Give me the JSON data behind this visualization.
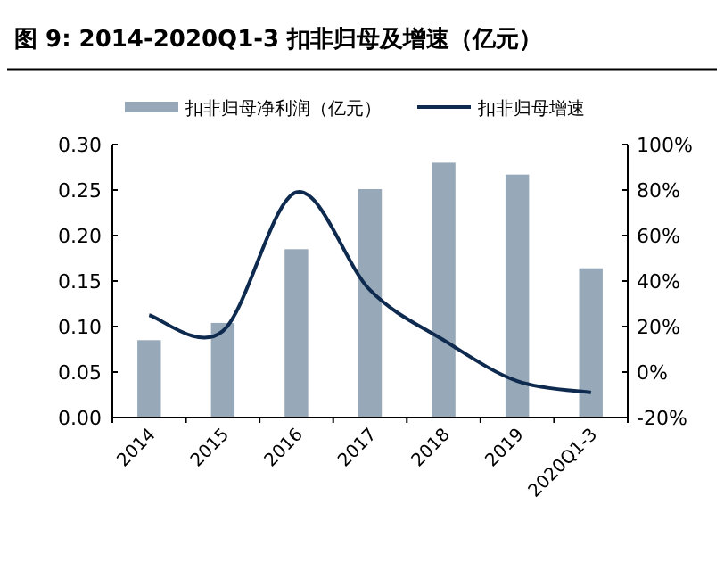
{
  "chart_data": {
    "type": "bar",
    "title": "图 9:   2014-2020Q1-3 扣非归母及增速（亿元）",
    "categories": [
      "2014",
      "2015",
      "2016",
      "2017",
      "2018",
      "2019",
      "2020Q1-3"
    ],
    "series": [
      {
        "name": "扣非归母净利润（亿元）",
        "color": "#97a9b8",
        "values": [
          0.085,
          0.104,
          0.185,
          0.251,
          0.28,
          0.267,
          0.164
        ]
      },
      {
        "name": "扣非归母增速",
        "type": "line",
        "axis": "y2",
        "color": "#0e2a4f",
        "values": [
          25,
          18,
          79,
          36,
          14,
          -4,
          -9
        ]
      }
    ],
    "ylim": [
      0,
      0.3
    ],
    "yticks": [
      {
        "value": 0,
        "label": "0.00"
      },
      {
        "value": 0.05,
        "label": "0.05"
      },
      {
        "value": 0.1,
        "label": "0.10"
      },
      {
        "value": 0.15,
        "label": "0.15"
      },
      {
        "value": 0.2,
        "label": "0.20"
      },
      {
        "value": 0.25,
        "label": "0.25"
      },
      {
        "value": 0.3,
        "label": "0.30"
      }
    ],
    "y2lim": [
      -20,
      100
    ],
    "y2ticks": [
      {
        "value": -20,
        "label": "-20%"
      },
      {
        "value": 0,
        "label": "0%"
      },
      {
        "value": 20,
        "label": "20%"
      },
      {
        "value": 40,
        "label": "40%"
      },
      {
        "value": 60,
        "label": "60%"
      },
      {
        "value": 80,
        "label": "80%"
      },
      {
        "value": 100,
        "label": "100%"
      }
    ],
    "legend": "top",
    "grid": false
  }
}
